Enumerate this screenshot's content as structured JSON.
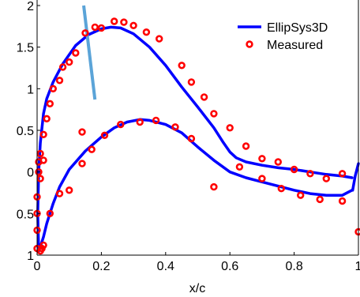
{
  "chart_data": {
    "type": "line",
    "title": "",
    "xlabel": "x/c",
    "ylabel": "",
    "xlim": [
      0,
      1
    ],
    "ylim": [
      -1,
      2
    ],
    "grid": false,
    "legend_position": "top-right",
    "x_ticks": [
      {
        "value": 0,
        "label": "0"
      },
      {
        "value": 0.2,
        "label": "0.2"
      },
      {
        "value": 0.4,
        "label": "0.4"
      },
      {
        "value": 0.6,
        "label": "0.6"
      },
      {
        "value": 0.8,
        "label": "0.8"
      },
      {
        "value": 1,
        "label": "1"
      }
    ],
    "y_ticks": [
      {
        "value": 2,
        "label": "2"
      },
      {
        "value": 1.5,
        "label": "1.5"
      },
      {
        "value": 1,
        "label": "1"
      },
      {
        "value": 0.5,
        "label": "0.5"
      },
      {
        "value": 0,
        "label": "0"
      },
      {
        "value": -0.5,
        "label": "0.5"
      },
      {
        "value": -1,
        "label": "1"
      }
    ],
    "series": [
      {
        "name": "EllipSys3D",
        "kind": "line",
        "color": "#0000ff",
        "curves": [
          [
            [
              0.98,
              -0.22
            ],
            [
              0.95,
              -0.28
            ],
            [
              0.9,
              -0.28
            ],
            [
              0.85,
              -0.26
            ],
            [
              0.8,
              -0.22
            ],
            [
              0.75,
              -0.17
            ],
            [
              0.7,
              -0.12
            ],
            [
              0.65,
              -0.07
            ],
            [
              0.6,
              0.0
            ],
            [
              0.55,
              0.14
            ],
            [
              0.5,
              0.3
            ],
            [
              0.45,
              0.47
            ],
            [
              0.4,
              0.57
            ],
            [
              0.35,
              0.62
            ],
            [
              0.32,
              0.63
            ],
            [
              0.28,
              0.6
            ],
            [
              0.24,
              0.53
            ],
            [
              0.2,
              0.42
            ],
            [
              0.15,
              0.25
            ],
            [
              0.1,
              0.03
            ],
            [
              0.07,
              -0.18
            ],
            [
              0.05,
              -0.38
            ],
            [
              0.03,
              -0.62
            ],
            [
              0.02,
              -0.78
            ],
            [
              0.01,
              -0.9
            ],
            [
              0.005,
              -0.95
            ]
          ],
          [
            [
              0.005,
              -0.95
            ],
            [
              0.002,
              -0.5
            ],
            [
              0.005,
              0.0
            ],
            [
              0.01,
              0.35
            ],
            [
              0.02,
              0.7
            ],
            [
              0.03,
              0.88
            ],
            [
              0.05,
              1.08
            ],
            [
              0.08,
              1.3
            ],
            [
              0.12,
              1.52
            ],
            [
              0.16,
              1.65
            ],
            [
              0.2,
              1.72
            ],
            [
              0.23,
              1.74
            ],
            [
              0.26,
              1.73
            ],
            [
              0.3,
              1.66
            ],
            [
              0.35,
              1.5
            ],
            [
              0.4,
              1.28
            ],
            [
              0.45,
              1.02
            ],
            [
              0.5,
              0.78
            ],
            [
              0.55,
              0.53
            ],
            [
              0.58,
              0.35
            ],
            [
              0.6,
              0.24
            ],
            [
              0.62,
              0.17
            ],
            [
              0.65,
              0.12
            ],
            [
              0.7,
              0.08
            ],
            [
              0.75,
              0.05
            ],
            [
              0.8,
              0.03
            ],
            [
              0.85,
              0.0
            ],
            [
              0.9,
              -0.03
            ],
            [
              0.95,
              -0.05
            ],
            [
              0.98,
              -0.07
            ]
          ],
          [
            [
              0.982,
              -0.22
            ],
            [
              0.99,
              -0.05
            ],
            [
              1.0,
              0.1
            ]
          ]
        ]
      },
      {
        "name": "Measured",
        "kind": "markers",
        "color": "#ff0000",
        "points": [
          [
            0.0,
            -0.92
          ],
          [
            0.0,
            -0.7
          ],
          [
            0.0,
            -0.5
          ],
          [
            0.0,
            -0.3
          ],
          [
            0.005,
            0.0
          ],
          [
            0.005,
            0.12
          ],
          [
            0.01,
            0.22
          ],
          [
            0.01,
            -0.95
          ],
          [
            0.015,
            -0.92
          ],
          [
            0.02,
            -0.88
          ],
          [
            0.01,
            -0.08
          ],
          [
            0.02,
            0.14
          ],
          [
            0.02,
            0.45
          ],
          [
            0.03,
            0.64
          ],
          [
            0.04,
            0.82
          ],
          [
            0.05,
            1.0
          ],
          [
            0.07,
            1.1
          ],
          [
            0.08,
            1.26
          ],
          [
            0.1,
            1.32
          ],
          [
            0.12,
            1.43
          ],
          [
            0.15,
            1.67
          ],
          [
            0.18,
            1.74
          ],
          [
            0.2,
            1.73
          ],
          [
            0.24,
            1.81
          ],
          [
            0.27,
            1.8
          ],
          [
            0.3,
            1.76
          ],
          [
            0.34,
            1.68
          ],
          [
            0.38,
            1.6
          ],
          [
            0.45,
            1.28
          ],
          [
            0.48,
            1.08
          ],
          [
            0.52,
            0.9
          ],
          [
            0.55,
            0.7
          ],
          [
            0.6,
            0.53
          ],
          [
            0.65,
            0.31
          ],
          [
            0.7,
            0.16
          ],
          [
            0.75,
            0.12
          ],
          [
            0.8,
            0.03
          ],
          [
            0.85,
            -0.02
          ],
          [
            0.9,
            -0.08
          ],
          [
            0.95,
            -0.02
          ],
          [
            1.0,
            -0.72
          ],
          [
            0.04,
            -0.5
          ],
          [
            0.07,
            -0.26
          ],
          [
            0.1,
            -0.22
          ],
          [
            0.14,
            0.1
          ],
          [
            0.17,
            0.27
          ],
          [
            0.21,
            0.44
          ],
          [
            0.26,
            0.57
          ],
          [
            0.32,
            0.6
          ],
          [
            0.37,
            0.62
          ],
          [
            0.43,
            0.54
          ],
          [
            0.48,
            0.4
          ],
          [
            0.55,
            -0.18
          ],
          [
            0.63,
            0.06
          ],
          [
            0.7,
            -0.08
          ],
          [
            0.76,
            -0.2
          ],
          [
            0.82,
            -0.28
          ],
          [
            0.88,
            -0.33
          ],
          [
            0.95,
            -0.35
          ],
          [
            0.14,
            0.48
          ]
        ]
      },
      {
        "name": "",
        "kind": "segment",
        "color": "#5ba4d8",
        "points": [
          [
            0.145,
            2.0
          ],
          [
            0.18,
            0.87
          ]
        ]
      }
    ]
  }
}
